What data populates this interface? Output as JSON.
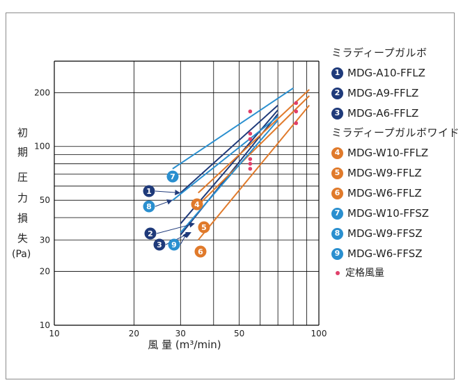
{
  "chart_data": {
    "type": "line",
    "xscale": "log",
    "yscale": "log",
    "xlim": [
      10,
      100
    ],
    "ylim": [
      10,
      300
    ],
    "x_ticks": [
      "10",
      "20",
      "30",
      "50",
      "100"
    ],
    "y_ticks": [
      "10",
      "20",
      "30",
      "50",
      "100",
      "200"
    ],
    "xlabel": "風 量 (m³/min)",
    "ylabel_chars": [
      "初",
      "期",
      "圧",
      "力",
      "損",
      "失"
    ],
    "ylabel_unit": "(Pa)",
    "grid": true,
    "legend_groups": [
      {
        "title": "ミラディープガルボ",
        "items": [
          0,
          1,
          2
        ]
      },
      {
        "title": "ミラディープガルボワイド",
        "items": [
          3,
          4,
          5,
          6,
          7,
          8
        ]
      }
    ],
    "series": [
      {
        "marker": "1",
        "name": "MDG-A10-FFLZ",
        "color": "#1f3a7a",
        "x": [
          30,
          70
        ],
        "y": [
          55,
          170
        ],
        "rated_x": 55,
        "rated_y": 118,
        "callout": {
          "x": 30,
          "y": 55
        }
      },
      {
        "marker": "2",
        "name": "MDG-A9-FFLZ",
        "color": "#1f3a7a",
        "x": [
          30,
          70
        ],
        "y": [
          37,
          160
        ],
        "rated_x": 55,
        "rated_y": 110,
        "callout": {
          "x": 34,
          "y": 37
        }
      },
      {
        "marker": "3",
        "name": "MDG-A6-FFLZ",
        "color": "#1f3a7a",
        "x": [
          30,
          70
        ],
        "y": [
          32,
          152
        ],
        "rated_x": 55,
        "rated_y": 85,
        "callout": {
          "x": 33,
          "y": 33
        }
      },
      {
        "marker": "4",
        "name": "MDG-W10-FFLZ",
        "color": "#e07a2b",
        "x": [
          35,
          92
        ],
        "y": [
          55,
          208
        ],
        "rated_x": 82,
        "rated_y": 175,
        "callout": null
      },
      {
        "marker": "5",
        "name": "MDG-W9-FFLZ",
        "color": "#e07a2b",
        "x": [
          35,
          92
        ],
        "y": [
          47,
          192
        ],
        "rated_x": 82,
        "rated_y": 157,
        "callout": null
      },
      {
        "marker": "6",
        "name": "MDG-W6-FFLZ",
        "color": "#e07a2b",
        "x": [
          35,
          92
        ],
        "y": [
          30,
          170
        ],
        "rated_x": 82,
        "rated_y": 135,
        "callout": null
      },
      {
        "marker": "7",
        "name": "MDG-W10-FFSZ",
        "color": "#2a8fcf",
        "x": [
          28,
          80
        ],
        "y": [
          75,
          212
        ],
        "rated_x": 55,
        "rated_y": 157,
        "callout": null
      },
      {
        "marker": "8",
        "name": "MDG-W9-FFSZ",
        "color": "#2a8fcf",
        "x": [
          28,
          70
        ],
        "y": [
          50,
          147
        ],
        "rated_x": 55,
        "rated_y": 80,
        "callout": {
          "x": 28,
          "y": 50
        }
      },
      {
        "marker": "9",
        "name": "MDG-W6-FFSZ",
        "color": "#2a8fcf",
        "x": [
          30,
          70
        ],
        "y": [
          33,
          140
        ],
        "rated_x": 55,
        "rated_y": 75,
        "callout": {
          "x": 32,
          "y": 33
        }
      }
    ],
    "rated_label": "定格風量",
    "rated_color": "#e0406a"
  }
}
